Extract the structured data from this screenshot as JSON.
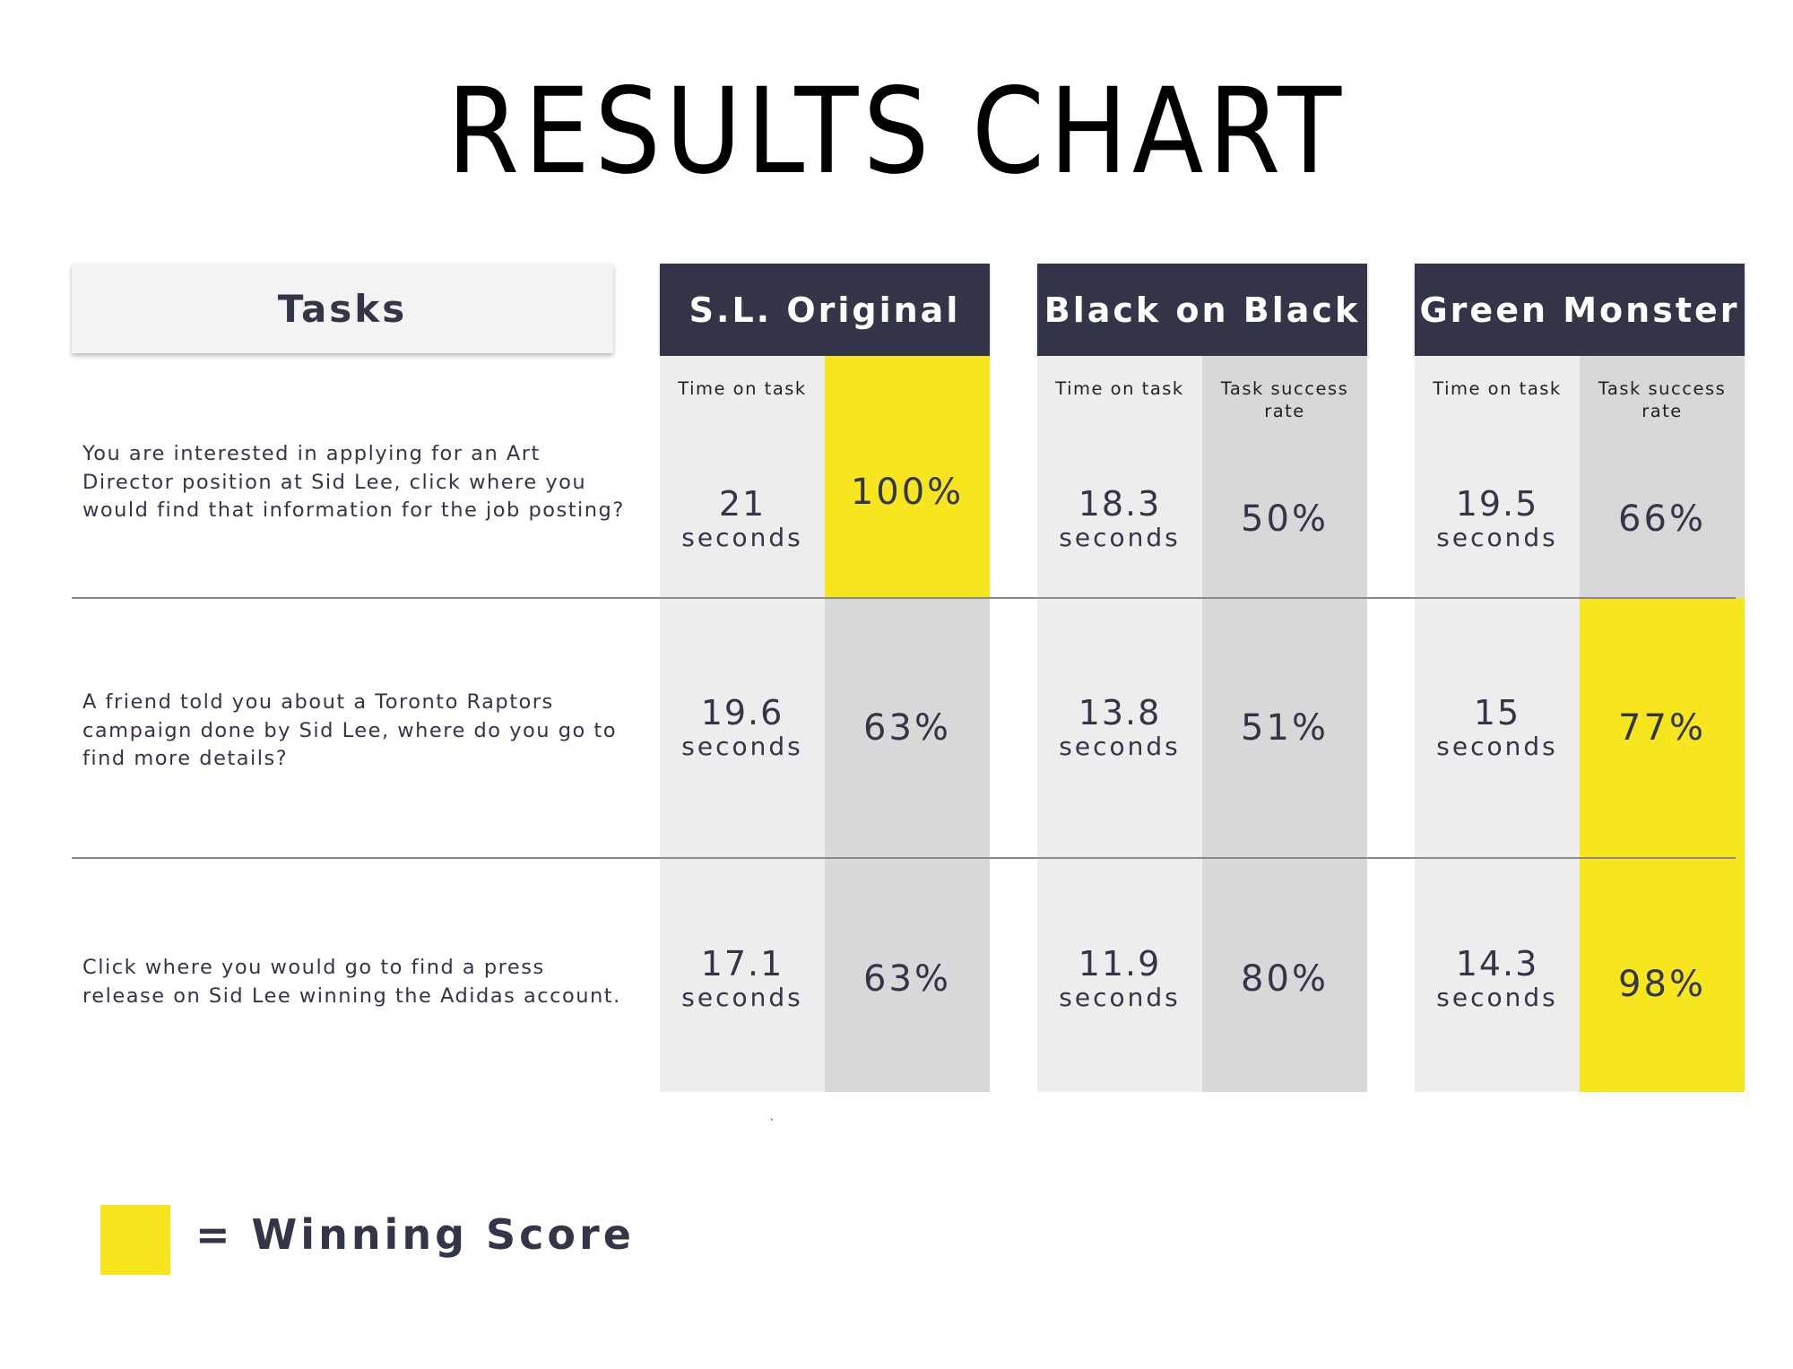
{
  "chart_data": {
    "type": "table",
    "title": "RESULTS CHART",
    "row_header": "Tasks",
    "columns": [
      "S.L. Original",
      "Black on Black",
      "Green Monster"
    ],
    "metrics": [
      "Time on task",
      "Task success rate"
    ],
    "time_unit": "seconds",
    "rows": [
      {
        "task": "You are interested in applying for an Art Director position at Sid Lee, click where you would find that information for the job posting?",
        "time": [
          "21",
          "18.3",
          "19.5"
        ],
        "success": [
          "100%",
          "50%",
          "66%"
        ],
        "winner": [
          true,
          false,
          false
        ]
      },
      {
        "task": "A friend told you about a Toronto Raptors campaign done by Sid Lee, where do you go to find more details?",
        "time": [
          "19.6",
          "13.8",
          "15"
        ],
        "success": [
          "63%",
          "51%",
          "77%"
        ],
        "winner": [
          false,
          false,
          true
        ]
      },
      {
        "task": "Click where you would go to find a press release on Sid Lee winning the Adidas account.",
        "time": [
          "17.1",
          "11.9",
          "14.3"
        ],
        "success": [
          "63%",
          "80%",
          "98%"
        ],
        "winner": [
          false,
          false,
          true
        ]
      }
    ],
    "legend": "= Winning Score",
    "stray_mark": "`",
    "colors": {
      "header": "#333548",
      "win": "#f7e51d",
      "time_bg": "#ededed",
      "rate_bg": "#d8d8d8"
    }
  }
}
